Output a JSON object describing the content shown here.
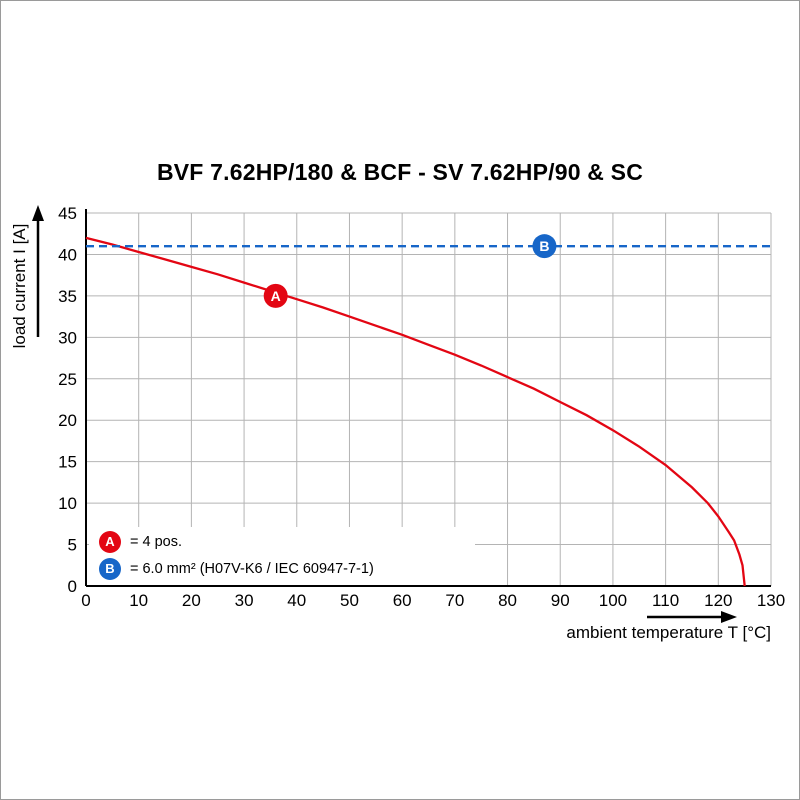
{
  "page": {
    "background": "#ffffff",
    "frame_border_color": "#9a9a9a"
  },
  "chart_data": {
    "type": "line",
    "title": "BVF 7.62HP/180 & BCF - SV 7.62HP/90 & SC",
    "xlabel": "ambient temperature T [°C]",
    "ylabel": "load current I [A]",
    "xlim": [
      0,
      130
    ],
    "ylim": [
      0,
      45
    ],
    "xticks": [
      0,
      10,
      20,
      30,
      40,
      50,
      60,
      70,
      80,
      90,
      100,
      110,
      120,
      130
    ],
    "yticks": [
      0,
      5,
      10,
      15,
      20,
      25,
      30,
      35,
      40,
      45
    ],
    "grid": true,
    "grid_color": "#b4b4b4",
    "axis_color": "#000000",
    "series": [
      {
        "name": "A",
        "color": "#e30613",
        "style": "solid",
        "points": [
          [
            0,
            42
          ],
          [
            5,
            41.2
          ],
          [
            10,
            40.3
          ],
          [
            15,
            39.4
          ],
          [
            20,
            38.5
          ],
          [
            25,
            37.6
          ],
          [
            30,
            36.6
          ],
          [
            35,
            35.6
          ],
          [
            40,
            34.6
          ],
          [
            45,
            33.6
          ],
          [
            50,
            32.5
          ],
          [
            55,
            31.4
          ],
          [
            60,
            30.3
          ],
          [
            65,
            29.1
          ],
          [
            70,
            27.9
          ],
          [
            75,
            26.6
          ],
          [
            80,
            25.2
          ],
          [
            85,
            23.8
          ],
          [
            90,
            22.2
          ],
          [
            95,
            20.6
          ],
          [
            100,
            18.8
          ],
          [
            105,
            16.8
          ],
          [
            110,
            14.6
          ],
          [
            115,
            11.9
          ],
          [
            118,
            10.0
          ],
          [
            120,
            8.4
          ],
          [
            122,
            6.5
          ],
          [
            123,
            5.5
          ],
          [
            124,
            3.8
          ],
          [
            124.6,
            2.5
          ],
          [
            125,
            0
          ]
        ]
      },
      {
        "name": "B",
        "color": "#1766c8",
        "style": "dashed",
        "points": [
          [
            0,
            41
          ],
          [
            130,
            41
          ]
        ]
      }
    ],
    "markers": [
      {
        "label": "A",
        "x": 36,
        "y": 35,
        "color": "#e30613"
      },
      {
        "label": "B",
        "x": 87,
        "y": 41,
        "color": "#1766c8"
      }
    ],
    "legend": [
      {
        "label": "A",
        "color": "#e30613",
        "text": "= 4 pos."
      },
      {
        "label": "B",
        "color": "#1766c8",
        "text": "= 6.0 mm² (H07V-K6 / IEC 60947-7-1)"
      }
    ],
    "legend_position": "bottom-left"
  }
}
